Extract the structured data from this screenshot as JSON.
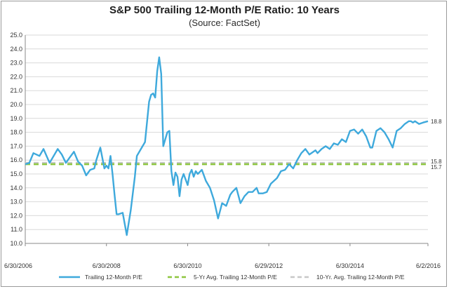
{
  "chart_data": {
    "type": "line",
    "title": "S&P 500 Trailing 12-Month P/E Ratio: 10 Years",
    "subtitle": "(Source: FactSet)",
    "ylim": [
      10.0,
      25.0
    ],
    "y_ticks": [
      "10.0",
      "11.0",
      "12.0",
      "13.0",
      "14.0",
      "15.0",
      "16.0",
      "17.0",
      "18.0",
      "19.0",
      "20.0",
      "21.0",
      "22.0",
      "23.0",
      "24.0",
      "25.0"
    ],
    "x_tick_labels": [
      "6/30/2006",
      "6/30/2008",
      "6/30/2010",
      "6/29/2012",
      "6/30/2014",
      "6/2/2016"
    ],
    "series": [
      {
        "name": "Trailing 12-Month P/E",
        "color": "#3ea9dc",
        "x": [
          2006.5,
          2006.6,
          2006.7,
          2006.85,
          2006.95,
          2007.1,
          2007.2,
          2007.3,
          2007.4,
          2007.5,
          2007.6,
          2007.7,
          2007.8,
          2007.9,
          2008.0,
          2008.1,
          2008.2,
          2008.25,
          2008.35,
          2008.45,
          2008.5,
          2008.55,
          2008.6,
          2008.65,
          2008.7,
          2008.75,
          2008.8,
          2008.9,
          2009.0,
          2009.1,
          2009.2,
          2009.25,
          2009.35,
          2009.45,
          2009.55,
          2009.6,
          2009.65,
          2009.7,
          2009.75,
          2009.8,
          2009.85,
          2009.9,
          2010.0,
          2010.05,
          2010.1,
          2010.15,
          2010.2,
          2010.25,
          2010.3,
          2010.35,
          2010.4,
          2010.5,
          2010.55,
          2010.6,
          2010.65,
          2010.7,
          2010.75,
          2010.85,
          2010.95,
          2011.05,
          2011.15,
          2011.25,
          2011.35,
          2011.45,
          2011.55,
          2011.6,
          2011.7,
          2011.8,
          2011.9,
          2012.0,
          2012.1,
          2012.2,
          2012.25,
          2012.35,
          2012.45,
          2012.55,
          2012.7,
          2012.8,
          2012.9,
          2013.0,
          2013.1,
          2013.2,
          2013.3,
          2013.4,
          2013.5,
          2013.6,
          2013.65,
          2013.7,
          2013.8,
          2013.9,
          2014.0,
          2014.1,
          2014.2,
          2014.3,
          2014.4,
          2014.5,
          2014.6,
          2014.7,
          2014.8,
          2014.9,
          2015.0,
          2015.05,
          2015.15,
          2015.25,
          2015.35,
          2015.45,
          2015.55,
          2015.65,
          2015.75,
          2015.85,
          2015.95,
          2016.0,
          2016.05,
          2016.1,
          2016.2,
          2016.3,
          2016.42
        ],
        "values": [
          15.7,
          15.8,
          16.5,
          16.3,
          16.8,
          15.8,
          16.3,
          16.8,
          16.4,
          15.8,
          16.2,
          16.6,
          15.9,
          15.6,
          14.9,
          15.3,
          15.4,
          16.0,
          16.9,
          15.4,
          15.6,
          15.4,
          16.3,
          15.0,
          13.5,
          12.1,
          12.1,
          12.2,
          10.6,
          12.4,
          14.8,
          16.3,
          16.8,
          17.3,
          20.2,
          20.7,
          20.8,
          20.5,
          22.4,
          23.4,
          22.2,
          17.0,
          18.0,
          18.1,
          15.2,
          14.2,
          15.1,
          14.8,
          13.4,
          14.6,
          15.0,
          14.2,
          15.0,
          15.3,
          14.8,
          15.2,
          15.0,
          15.3,
          14.5,
          14.0,
          13.1,
          11.8,
          12.9,
          12.7,
          13.5,
          13.7,
          14.0,
          12.9,
          13.4,
          13.7,
          13.7,
          14.0,
          13.6,
          13.6,
          13.7,
          14.3,
          14.7,
          15.2,
          15.3,
          15.7,
          15.4,
          16.0,
          16.5,
          16.8,
          16.4,
          16.6,
          16.7,
          16.5,
          16.8,
          17.0,
          16.8,
          17.2,
          17.1,
          17.5,
          17.3,
          18.1,
          18.2,
          17.9,
          18.2,
          17.7,
          16.9,
          16.9,
          18.1,
          18.3,
          18.0,
          17.5,
          16.9,
          18.1,
          18.3,
          18.6,
          18.8,
          18.8,
          18.7,
          18.8,
          18.6,
          18.7,
          18.8
        ]
      },
      {
        "name": "5-Yr Avg. Trailing 12-Month P/E",
        "color": "#8dc63f",
        "dash": "dashed",
        "value": 15.7
      },
      {
        "name": "10-Yr. Avg. Trailing 12-Month P/E",
        "color": "#c8c8c8",
        "dash": "dashed",
        "value": 15.8
      }
    ],
    "end_labels": {
      "pe": "18.8",
      "ten_yr_avg": "15.8",
      "five_yr_avg": "15.7"
    },
    "legend_position": "bottom"
  }
}
